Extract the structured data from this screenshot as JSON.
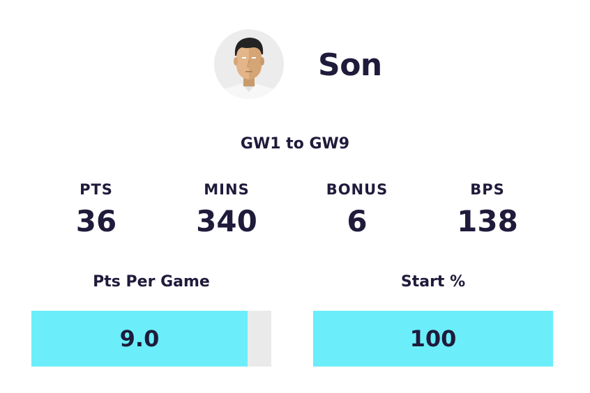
{
  "player": {
    "name": "Son"
  },
  "range": "GW1 to GW9",
  "stats": [
    {
      "label": "PTS",
      "value": "36"
    },
    {
      "label": "MINS",
      "value": "340"
    },
    {
      "label": "BONUS",
      "value": "6"
    },
    {
      "label": "BPS",
      "value": "138"
    }
  ],
  "bars": [
    {
      "label": "Pts Per Game",
      "value": "9.0",
      "fill_fraction": 0.9
    },
    {
      "label": "Start %",
      "value": "100",
      "fill_fraction": 1.0
    }
  ],
  "colors": {
    "text": "#1f1b3b",
    "bar_fill": "#6beefa",
    "bar_track": "#eaeaea",
    "avatar_bg": "#ececec"
  }
}
